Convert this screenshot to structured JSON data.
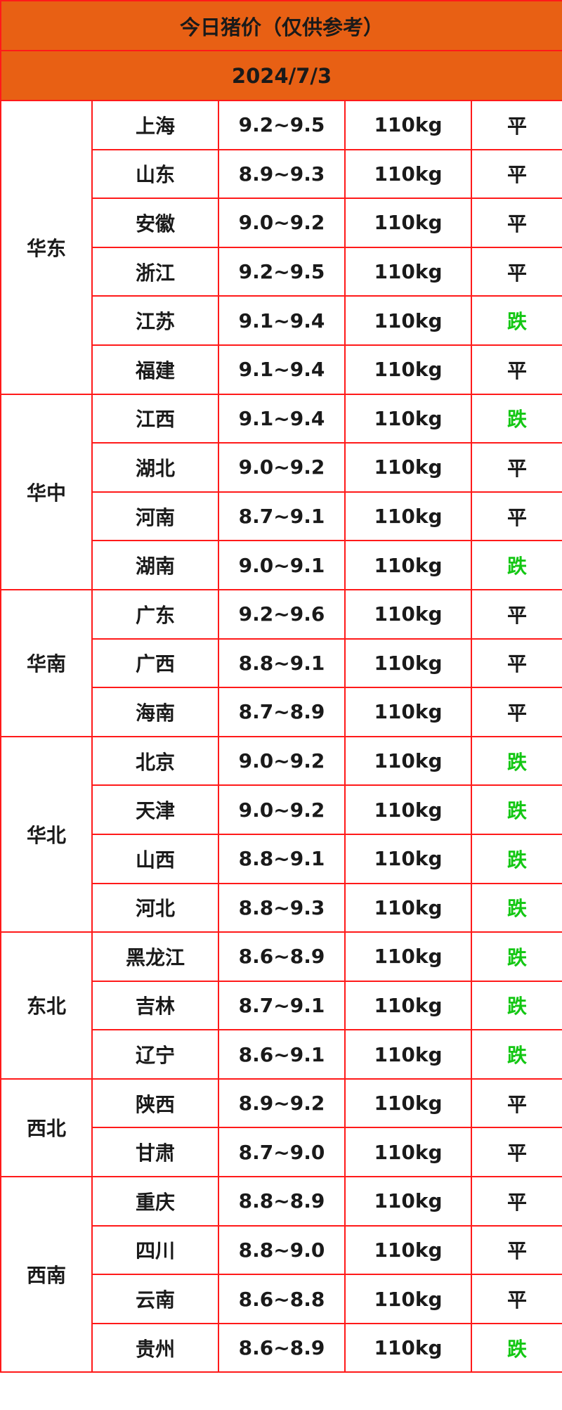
{
  "title": "今日猪价（仅供参考）",
  "date": "2024/7/3",
  "colors": {
    "header_bg": "#e86014",
    "border": "#ff1a1a",
    "down": "#13c713",
    "flat": "#1a1a1a"
  },
  "regions": [
    {
      "name": "华东",
      "rows": [
        {
          "province": "上海",
          "price": "9.2~9.5",
          "weight": "110kg",
          "trend": "平"
        },
        {
          "province": "山东",
          "price": "8.9~9.3",
          "weight": "110kg",
          "trend": "平"
        },
        {
          "province": "安徽",
          "price": "9.0~9.2",
          "weight": "110kg",
          "trend": "平"
        },
        {
          "province": "浙江",
          "price": "9.2~9.5",
          "weight": "110kg",
          "trend": "平"
        },
        {
          "province": "江苏",
          "price": "9.1~9.4",
          "weight": "110kg",
          "trend": "跌"
        },
        {
          "province": "福建",
          "price": "9.1~9.4",
          "weight": "110kg",
          "trend": "平"
        }
      ]
    },
    {
      "name": "华中",
      "rows": [
        {
          "province": "江西",
          "price": "9.1~9.4",
          "weight": "110kg",
          "trend": "跌"
        },
        {
          "province": "湖北",
          "price": "9.0~9.2",
          "weight": "110kg",
          "trend": "平"
        },
        {
          "province": "河南",
          "price": "8.7~9.1",
          "weight": "110kg",
          "trend": "平"
        },
        {
          "province": "湖南",
          "price": "9.0~9.1",
          "weight": "110kg",
          "trend": "跌"
        }
      ]
    },
    {
      "name": "华南",
      "rows": [
        {
          "province": "广东",
          "price": "9.2~9.6",
          "weight": "110kg",
          "trend": "平"
        },
        {
          "province": "广西",
          "price": "8.8~9.1",
          "weight": "110kg",
          "trend": "平"
        },
        {
          "province": "海南",
          "price": "8.7~8.9",
          "weight": "110kg",
          "trend": "平"
        }
      ]
    },
    {
      "name": "华北",
      "rows": [
        {
          "province": "北京",
          "price": "9.0~9.2",
          "weight": "110kg",
          "trend": "跌"
        },
        {
          "province": "天津",
          "price": "9.0~9.2",
          "weight": "110kg",
          "trend": "跌"
        },
        {
          "province": "山西",
          "price": "8.8~9.1",
          "weight": "110kg",
          "trend": "跌"
        },
        {
          "province": "河北",
          "price": "8.8~9.3",
          "weight": "110kg",
          "trend": "跌"
        }
      ]
    },
    {
      "name": "东北",
      "rows": [
        {
          "province": "黑龙江",
          "price": "8.6~8.9",
          "weight": "110kg",
          "trend": "跌"
        },
        {
          "province": "吉林",
          "price": "8.7~9.1",
          "weight": "110kg",
          "trend": "跌"
        },
        {
          "province": "辽宁",
          "price": "8.6~9.1",
          "weight": "110kg",
          "trend": "跌"
        }
      ]
    },
    {
      "name": "西北",
      "rows": [
        {
          "province": "陕西",
          "price": "8.9~9.2",
          "weight": "110kg",
          "trend": "平"
        },
        {
          "province": "甘肃",
          "price": "8.7~9.0",
          "weight": "110kg",
          "trend": "平"
        }
      ]
    },
    {
      "name": "西南",
      "rows": [
        {
          "province": "重庆",
          "price": "8.8~8.9",
          "weight": "110kg",
          "trend": "平"
        },
        {
          "province": "四川",
          "price": "8.8~9.0",
          "weight": "110kg",
          "trend": "平"
        },
        {
          "province": "云南",
          "price": "8.6~8.8",
          "weight": "110kg",
          "trend": "平"
        },
        {
          "province": "贵州",
          "price": "8.6~8.9",
          "weight": "110kg",
          "trend": "跌"
        }
      ]
    }
  ]
}
